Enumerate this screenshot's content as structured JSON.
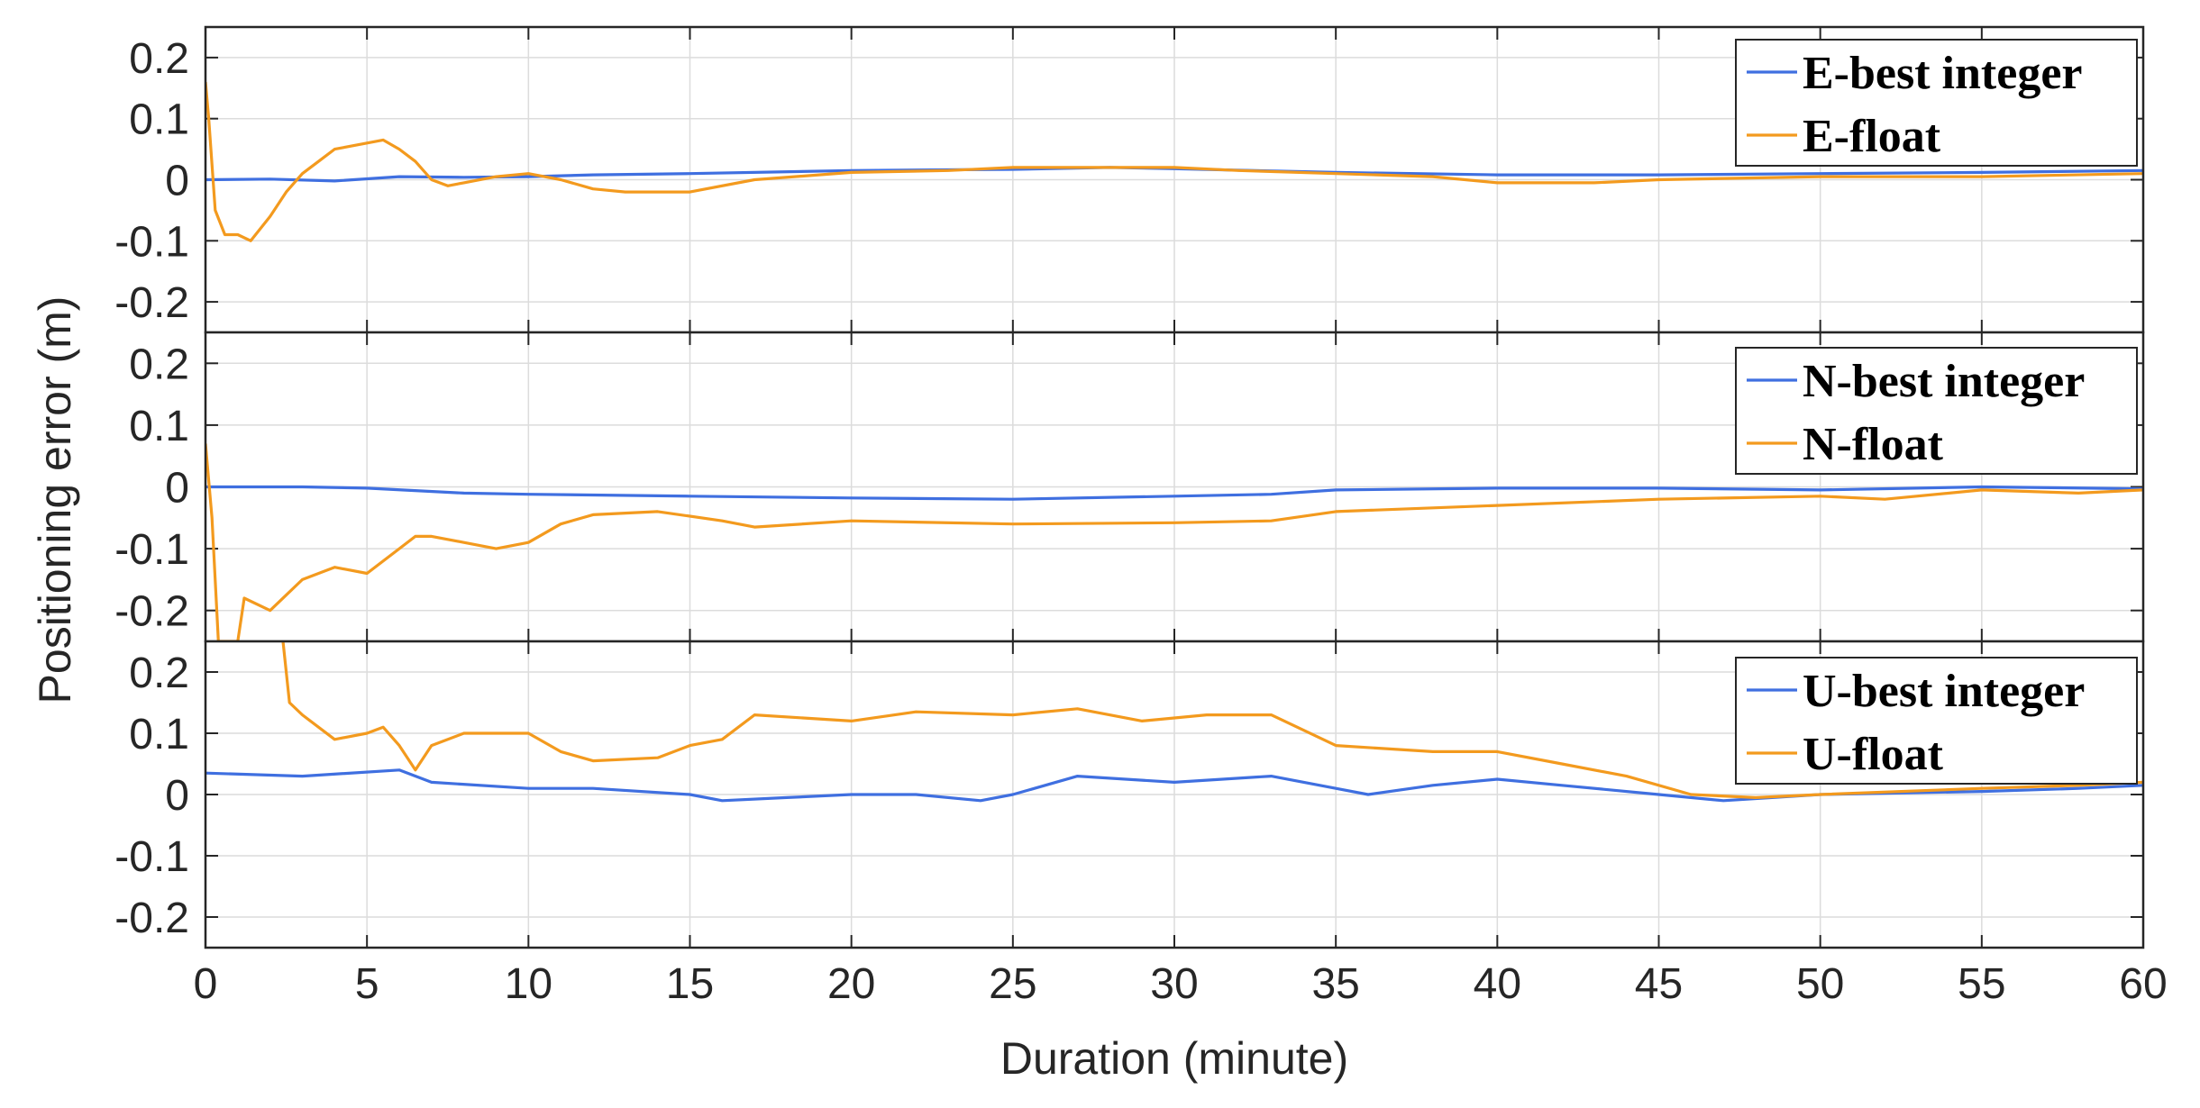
{
  "chart_data": {
    "type": "line",
    "xlabel": "Duration (minute)",
    "ylabel": "Positioning error (m)",
    "xlim": [
      0,
      60
    ],
    "ylim": [
      -0.25,
      0.25
    ],
    "x_ticks": [
      0,
      5,
      10,
      15,
      20,
      25,
      30,
      35,
      40,
      45,
      50,
      55,
      60
    ],
    "y_ticks": [
      0.2,
      0.1,
      0,
      -0.1,
      -0.2
    ],
    "y_tick_labels": [
      "0.2",
      "0.1",
      "0",
      "-0.1",
      "-0.2"
    ],
    "grid": true,
    "legend_position": "top-right",
    "colors": {
      "best_integer": "#3f6fe0",
      "float": "#f39a1e"
    },
    "panels": [
      {
        "id": "E",
        "series": [
          {
            "name": "E-best integer",
            "color": "#3f6fe0",
            "points": [
              [
                0,
                0
              ],
              [
                2,
                0.001
              ],
              [
                4,
                -0.002
              ],
              [
                6,
                0.005
              ],
              [
                8,
                0.004
              ],
              [
                10,
                0.005
              ],
              [
                12,
                0.008
              ],
              [
                15,
                0.01
              ],
              [
                20,
                0.015
              ],
              [
                25,
                0.017
              ],
              [
                28,
                0.02
              ],
              [
                30,
                0.018
              ],
              [
                35,
                0.012
              ],
              [
                40,
                0.008
              ],
              [
                45,
                0.008
              ],
              [
                50,
                0.01
              ],
              [
                55,
                0.012
              ],
              [
                60,
                0.015
              ]
            ]
          },
          {
            "name": "E-float",
            "color": "#f39a1e",
            "points": [
              [
                0,
                0.16
              ],
              [
                0.1,
                0.1
              ],
              [
                0.3,
                -0.05
              ],
              [
                0.6,
                -0.09
              ],
              [
                1,
                -0.09
              ],
              [
                1.4,
                -0.1
              ],
              [
                2,
                -0.06
              ],
              [
                2.5,
                -0.02
              ],
              [
                3,
                0.01
              ],
              [
                3.5,
                0.03
              ],
              [
                4,
                0.05
              ],
              [
                5,
                0.06
              ],
              [
                5.5,
                0.065
              ],
              [
                6,
                0.05
              ],
              [
                6.5,
                0.03
              ],
              [
                7,
                0
              ],
              [
                7.5,
                -0.01
              ],
              [
                8,
                -0.005
              ],
              [
                9,
                0.005
              ],
              [
                10,
                0.01
              ],
              [
                11,
                0
              ],
              [
                12,
                -0.015
              ],
              [
                13,
                -0.02
              ],
              [
                15,
                -0.02
              ],
              [
                17,
                0
              ],
              [
                20,
                0.012
              ],
              [
                23,
                0.015
              ],
              [
                25,
                0.02
              ],
              [
                27,
                0.02
              ],
              [
                30,
                0.02
              ],
              [
                32,
                0.015
              ],
              [
                35,
                0.01
              ],
              [
                38,
                0.005
              ],
              [
                40,
                -0.005
              ],
              [
                43,
                -0.005
              ],
              [
                45,
                0
              ],
              [
                50,
                0.005
              ],
              [
                55,
                0.005
              ],
              [
                60,
                0.01
              ]
            ]
          }
        ]
      },
      {
        "id": "N",
        "series": [
          {
            "name": "N-best integer",
            "color": "#3f6fe0",
            "points": [
              [
                0,
                0
              ],
              [
                3,
                0
              ],
              [
                5,
                -0.002
              ],
              [
                8,
                -0.01
              ],
              [
                10,
                -0.012
              ],
              [
                15,
                -0.015
              ],
              [
                20,
                -0.018
              ],
              [
                25,
                -0.02
              ],
              [
                30,
                -0.015
              ],
              [
                33,
                -0.012
              ],
              [
                35,
                -0.005
              ],
              [
                40,
                -0.002
              ],
              [
                45,
                -0.002
              ],
              [
                50,
                -0.005
              ],
              [
                55,
                0
              ],
              [
                60,
                -0.003
              ]
            ]
          },
          {
            "name": "N-float",
            "color": "#f39a1e",
            "points": [
              [
                0,
                0.07
              ],
              [
                0.2,
                -0.05
              ],
              [
                0.4,
                -0.25
              ],
              [
                1,
                -0.25
              ],
              [
                1.2,
                -0.18
              ],
              [
                2,
                -0.2
              ],
              [
                3,
                -0.15
              ],
              [
                4,
                -0.13
              ],
              [
                5,
                -0.14
              ],
              [
                6,
                -0.1
              ],
              [
                6.5,
                -0.08
              ],
              [
                7,
                -0.08
              ],
              [
                8,
                -0.09
              ],
              [
                9,
                -0.1
              ],
              [
                10,
                -0.09
              ],
              [
                11,
                -0.06
              ],
              [
                12,
                -0.045
              ],
              [
                14,
                -0.04
              ],
              [
                16,
                -0.055
              ],
              [
                17,
                -0.065
              ],
              [
                20,
                -0.055
              ],
              [
                25,
                -0.06
              ],
              [
                30,
                -0.058
              ],
              [
                33,
                -0.055
              ],
              [
                35,
                -0.04
              ],
              [
                40,
                -0.03
              ],
              [
                45,
                -0.02
              ],
              [
                50,
                -0.015
              ],
              [
                52,
                -0.02
              ],
              [
                55,
                -0.005
              ],
              [
                58,
                -0.01
              ],
              [
                60,
                -0.005
              ]
            ]
          }
        ]
      },
      {
        "id": "U",
        "series": [
          {
            "name": "U-best integer",
            "color": "#3f6fe0",
            "points": [
              [
                0,
                0.035
              ],
              [
                3,
                0.03
              ],
              [
                6,
                0.04
              ],
              [
                7,
                0.02
              ],
              [
                10,
                0.01
              ],
              [
                12,
                0.01
              ],
              [
                15,
                0
              ],
              [
                16,
                -0.01
              ],
              [
                18,
                -0.005
              ],
              [
                20,
                0
              ],
              [
                22,
                0
              ],
              [
                24,
                -0.01
              ],
              [
                25,
                0
              ],
              [
                27,
                0.03
              ],
              [
                30,
                0.02
              ],
              [
                33,
                0.03
              ],
              [
                35,
                0.01
              ],
              [
                36,
                0
              ],
              [
                38,
                0.015
              ],
              [
                40,
                0.025
              ],
              [
                42,
                0.015
              ],
              [
                45,
                0
              ],
              [
                47,
                -0.01
              ],
              [
                50,
                0
              ],
              [
                55,
                0.005
              ],
              [
                58,
                0.01
              ],
              [
                60,
                0.015
              ]
            ]
          },
          {
            "name": "U-float",
            "color": "#f39a1e",
            "points": [
              [
                2.4,
                0.25
              ],
              [
                2.6,
                0.15
              ],
              [
                3,
                0.13
              ],
              [
                4,
                0.09
              ],
              [
                5,
                0.1
              ],
              [
                5.5,
                0.11
              ],
              [
                6,
                0.08
              ],
              [
                6.5,
                0.04
              ],
              [
                7,
                0.08
              ],
              [
                8,
                0.1
              ],
              [
                10,
                0.1
              ],
              [
                11,
                0.07
              ],
              [
                12,
                0.055
              ],
              [
                14,
                0.06
              ],
              [
                15,
                0.08
              ],
              [
                16,
                0.09
              ],
              [
                17,
                0.13
              ],
              [
                20,
                0.12
              ],
              [
                22,
                0.135
              ],
              [
                25,
                0.13
              ],
              [
                27,
                0.14
              ],
              [
                29,
                0.12
              ],
              [
                31,
                0.13
              ],
              [
                33,
                0.13
              ],
              [
                35,
                0.08
              ],
              [
                38,
                0.07
              ],
              [
                40,
                0.07
              ],
              [
                42,
                0.05
              ],
              [
                44,
                0.03
              ],
              [
                46,
                0
              ],
              [
                48,
                -0.005
              ],
              [
                50,
                0
              ],
              [
                55,
                0.01
              ],
              [
                58,
                0.015
              ],
              [
                60,
                0.02
              ]
            ]
          }
        ]
      }
    ]
  }
}
